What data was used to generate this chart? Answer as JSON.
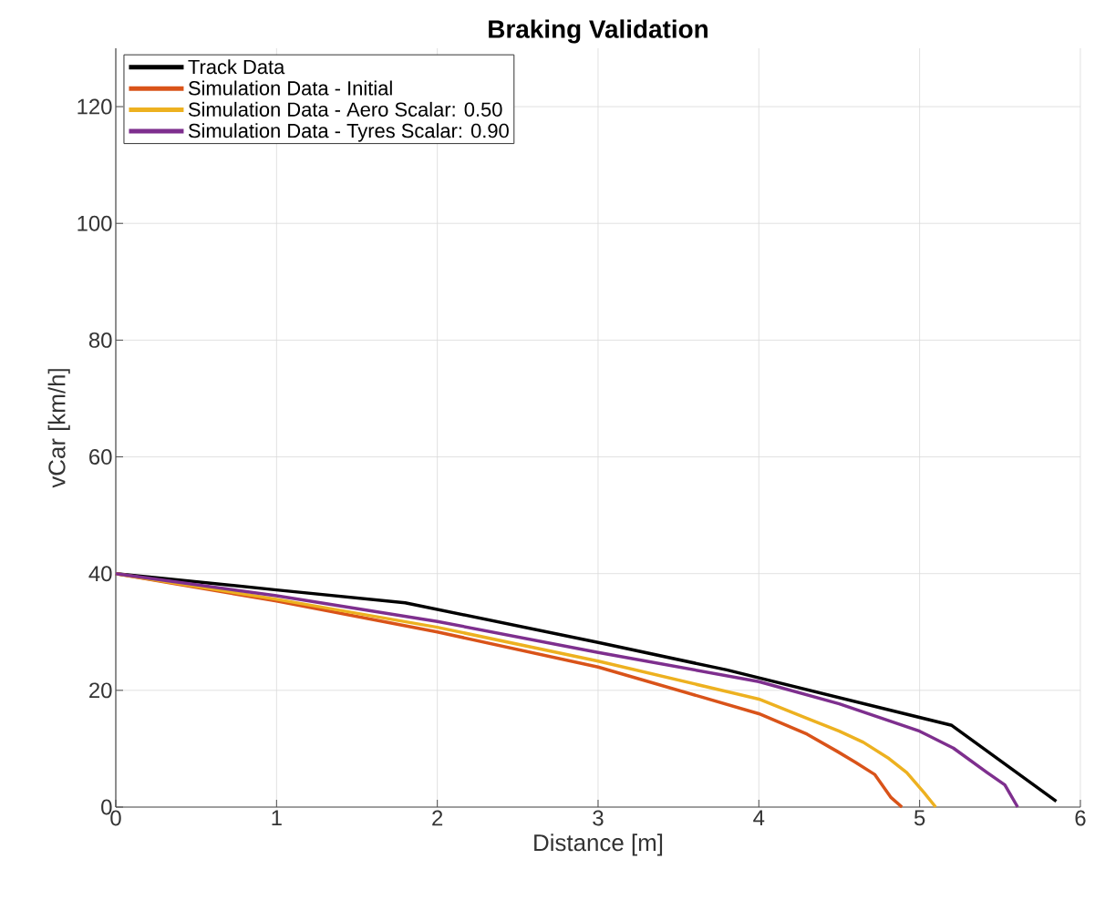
{
  "chart_data": {
    "type": "line",
    "title": "Braking Validation",
    "xlabel": "Distance [m]",
    "ylabel": "vCar [km/h]",
    "xlim": [
      0,
      6
    ],
    "ylim": [
      0,
      130
    ],
    "xticks": [
      0,
      1,
      2,
      3,
      4,
      5,
      6
    ],
    "yticks": [
      0,
      20,
      40,
      60,
      80,
      100,
      120
    ],
    "grid": true,
    "legend": "top left",
    "line_style": "solid",
    "series": [
      {
        "name": "Track Data",
        "color": "#000000",
        "x": [
          0,
          1,
          1.8,
          3,
          3.8,
          5.2,
          5.85
        ],
        "values": [
          40,
          37.2,
          35,
          28.2,
          23.5,
          14,
          1
        ]
      },
      {
        "name": "Simulation Data - Initial",
        "color": "#d95319",
        "x": [
          0,
          1,
          2,
          3,
          4,
          4.3,
          4.49,
          4.6,
          4.72,
          4.82,
          4.89
        ],
        "values": [
          40,
          35.3,
          30,
          24,
          16,
          12.5,
          9.5,
          7.7,
          5.6,
          1.7,
          0
        ]
      },
      {
        "name": "Simulation Data - Aero Scalar: 0.50",
        "color": "#edb120",
        "x": [
          0,
          1,
          2,
          3,
          4,
          4.3,
          4.5,
          4.65,
          4.81,
          4.92,
          5.03,
          5.1
        ],
        "values": [
          40,
          35.6,
          30.8,
          25,
          18.5,
          15.2,
          13,
          11.1,
          8.3,
          5.9,
          2.4,
          0
        ]
      },
      {
        "name": "Simulation Data - Tyres Scalar: 0.90",
        "color": "#7e2f8e",
        "x": [
          0,
          1,
          2,
          3,
          4,
          4.5,
          5,
          5.21,
          5.42,
          5.53,
          5.61
        ],
        "values": [
          40,
          36.2,
          31.8,
          26.5,
          21.5,
          17.7,
          13,
          10.1,
          5.9,
          3.8,
          0
        ]
      }
    ]
  }
}
